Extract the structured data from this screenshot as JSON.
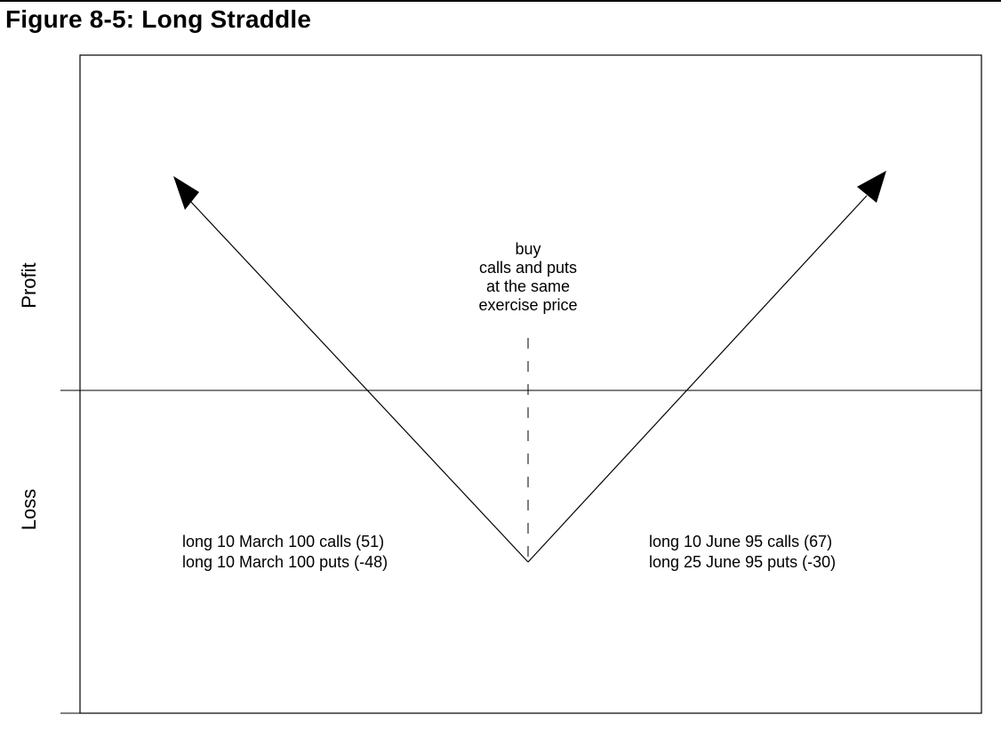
{
  "figure": {
    "title": "Figure 8-5: Long Straddle"
  },
  "axes": {
    "upper_label": "Profit",
    "lower_label": "Loss"
  },
  "center_note": {
    "lines": [
      "buy",
      "calls and puts",
      "at the same",
      "exercise price"
    ]
  },
  "positions": {
    "left": [
      "long 10 March 100 calls (51)",
      "long 10 March 100 puts (-48)"
    ],
    "right": [
      "long 10 June 95 calls (67)",
      "long 25 June 95 puts (-30)"
    ]
  },
  "colors": {
    "ink": "#000000",
    "background": "#ffffff"
  }
}
